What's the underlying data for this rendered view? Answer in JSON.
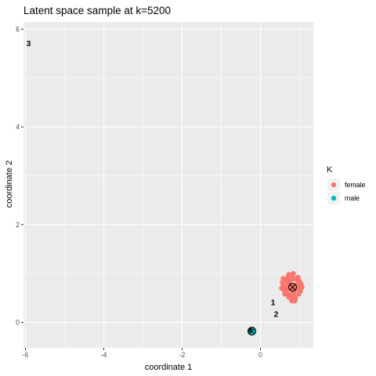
{
  "chart_data": {
    "type": "scatter",
    "title": "Latent space sample at k=5200",
    "xlabel": "coordinate 1",
    "ylabel": "coordinate 2",
    "xlim": [
      -6.05,
      1.35
    ],
    "ylim": [
      -0.52,
      6.15
    ],
    "xticks": [
      -6,
      -4,
      -2,
      0
    ],
    "yticks": [
      0,
      2,
      4,
      6
    ],
    "x_tick_labels": [
      "-6",
      "-4",
      "-2",
      "0"
    ],
    "y_tick_labels": [
      "0",
      "2",
      "4",
      "6"
    ],
    "grid": true,
    "legend": {
      "title": "K",
      "placement": "right",
      "entries": [
        {
          "label": "female",
          "color": "#F8766D"
        },
        {
          "label": "male",
          "color": "#00BFC4"
        }
      ]
    },
    "series": [
      {
        "name": "female",
        "color": "#F8766D",
        "points": [
          [
            0.8,
            0.72
          ],
          [
            0.78,
            0.68
          ],
          [
            0.84,
            0.76
          ],
          [
            0.74,
            0.7
          ],
          [
            0.88,
            0.66
          ],
          [
            0.7,
            0.78
          ],
          [
            0.92,
            0.74
          ],
          [
            0.66,
            0.64
          ],
          [
            0.96,
            0.8
          ],
          [
            0.62,
            0.72
          ],
          [
            1.0,
            0.7
          ],
          [
            0.58,
            0.76
          ],
          [
            0.82,
            0.88
          ],
          [
            0.76,
            0.56
          ],
          [
            0.9,
            0.9
          ],
          [
            0.72,
            0.52
          ],
          [
            0.86,
            0.54
          ],
          [
            0.64,
            0.86
          ],
          [
            0.98,
            0.58
          ],
          [
            0.68,
            0.6
          ],
          [
            0.94,
            0.86
          ],
          [
            0.8,
            0.96
          ],
          [
            0.78,
            0.48
          ],
          [
            0.6,
            0.66
          ],
          [
            1.02,
            0.64
          ],
          [
            0.84,
            1.0
          ],
          [
            0.7,
            0.92
          ],
          [
            0.88,
            0.44
          ],
          [
            0.56,
            0.82
          ],
          [
            1.04,
            0.78
          ],
          [
            0.74,
            0.82
          ],
          [
            0.86,
            0.62
          ],
          [
            0.66,
            0.74
          ],
          [
            0.92,
            0.68
          ],
          [
            0.82,
            0.58
          ],
          [
            0.76,
            0.9
          ],
          [
            0.96,
            0.92
          ],
          [
            0.62,
            0.58
          ],
          [
            0.54,
            0.7
          ],
          [
            1.06,
            0.72
          ],
          [
            0.8,
            0.44
          ],
          [
            0.72,
            0.98
          ],
          [
            0.9,
            0.5
          ],
          [
            0.58,
            0.9
          ],
          [
            1.0,
            0.84
          ]
        ]
      },
      {
        "name": "male",
        "color": "#00BFC4",
        "points": [
          [
            -0.22,
            -0.18
          ],
          [
            -0.19,
            -0.2
          ],
          [
            -0.25,
            -0.16
          ],
          [
            -0.2,
            -0.14
          ],
          [
            -0.24,
            -0.21
          ]
        ]
      }
    ],
    "centers": [
      {
        "x": 0.82,
        "y": 0.72,
        "color": "#F8766D"
      },
      {
        "x": -0.22,
        "y": -0.18,
        "color": "#00BFC4"
      }
    ],
    "annotations": [
      {
        "text": "3",
        "x": -5.92,
        "y": 5.72
      },
      {
        "text": "1",
        "x": 0.32,
        "y": 0.42
      },
      {
        "text": "2",
        "x": 0.4,
        "y": 0.18
      },
      {
        "text": "4",
        "x": -0.26,
        "y": -0.15
      }
    ]
  }
}
